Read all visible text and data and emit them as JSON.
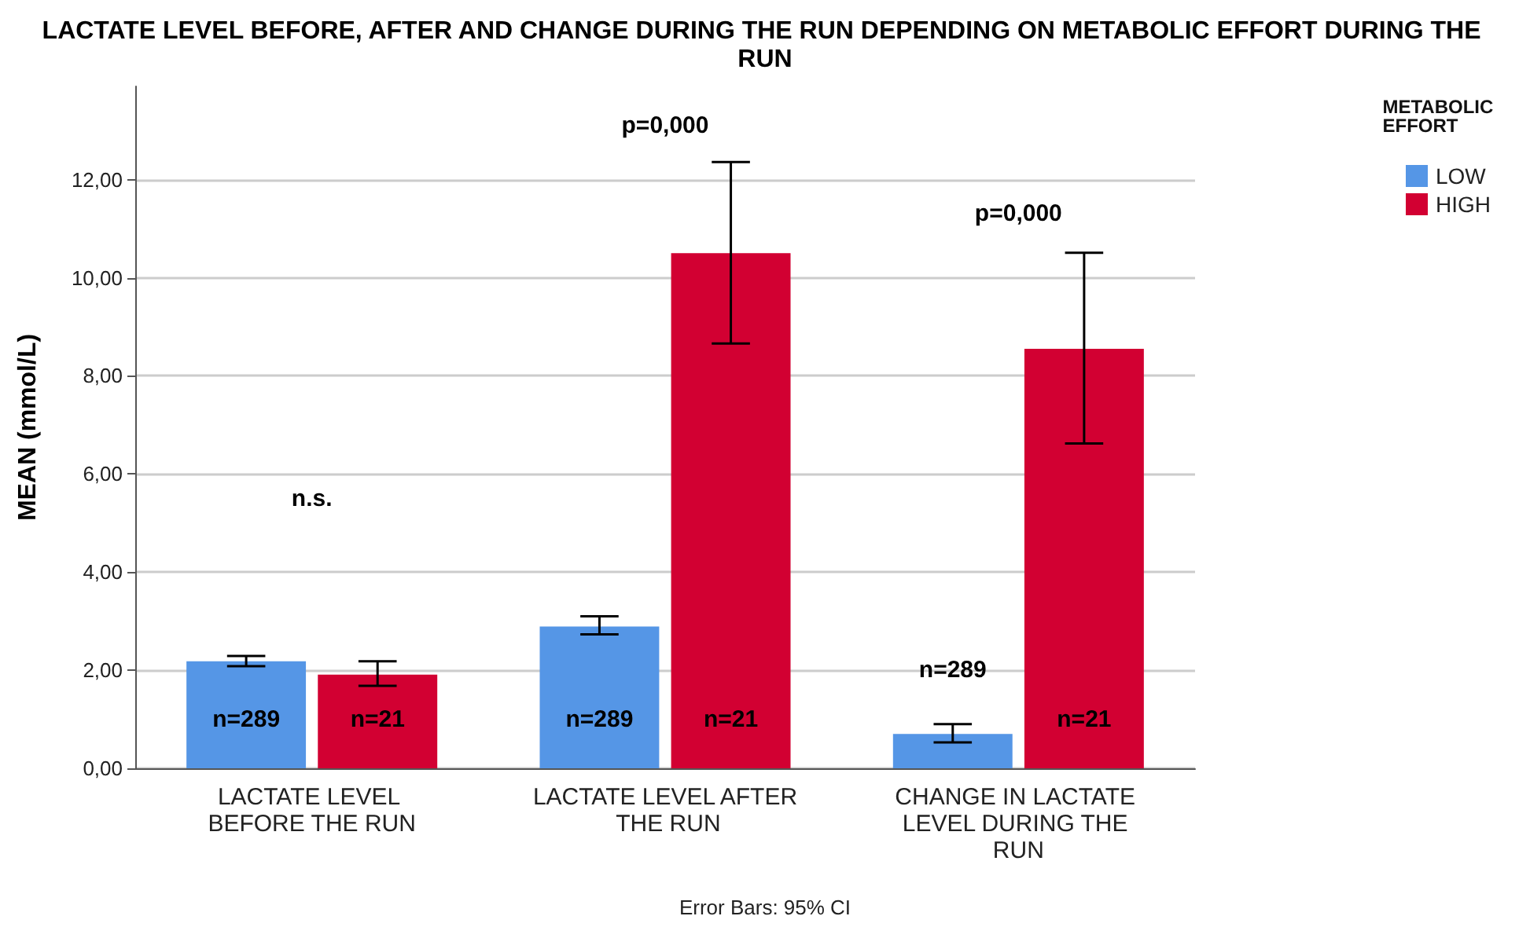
{
  "chart_data": {
    "type": "bar",
    "title": "LACTATE LEVEL BEFORE, AFTER AND CHANGE DURING THE RUN DEPENDING ON METABOLIC EFFORT DURING THE RUN",
    "ylabel": "MEAN (mmol/L)",
    "legend_title": "METABOLIC EFFORT",
    "categories": [
      "LACTATE LEVEL BEFORE THE RUN",
      "LACTATE LEVEL AFTER THE RUN",
      "CHANGE IN LACTATE LEVEL DURING THE RUN"
    ],
    "series": [
      {
        "name": "LOW",
        "color": "#5596e6",
        "values": [
          2.18,
          2.89,
          0.7
        ],
        "errors": [
          [
            2.08,
            2.29
          ],
          [
            2.73,
            3.1
          ],
          [
            0.53,
            0.9
          ]
        ]
      },
      {
        "name": "HIGH",
        "color": "#d20032",
        "values": [
          1.91,
          10.5,
          8.55
        ],
        "errors": [
          [
            1.68,
            2.18
          ],
          [
            8.66,
            12.36
          ],
          [
            6.62,
            10.51
          ]
        ]
      }
    ],
    "ylim": [
      0,
      13.9
    ],
    "yticks": [
      {
        "value": 0,
        "label": "0,00"
      },
      {
        "value": 2,
        "label": "2,00"
      },
      {
        "value": 4,
        "label": "4,00"
      },
      {
        "value": 6,
        "label": "6,00"
      },
      {
        "value": 8,
        "label": "8,00"
      },
      {
        "value": 10,
        "label": "10,00"
      },
      {
        "value": 12,
        "label": "12,00"
      }
    ],
    "grid": "y",
    "legend": "top right",
    "annotations": [
      "n.s.",
      "p=0,000",
      "p=0,000",
      "n=289",
      "n=21",
      "n=289",
      "n=21",
      "n=289",
      "n=21",
      "Error Bars: 95% CI"
    ]
  }
}
